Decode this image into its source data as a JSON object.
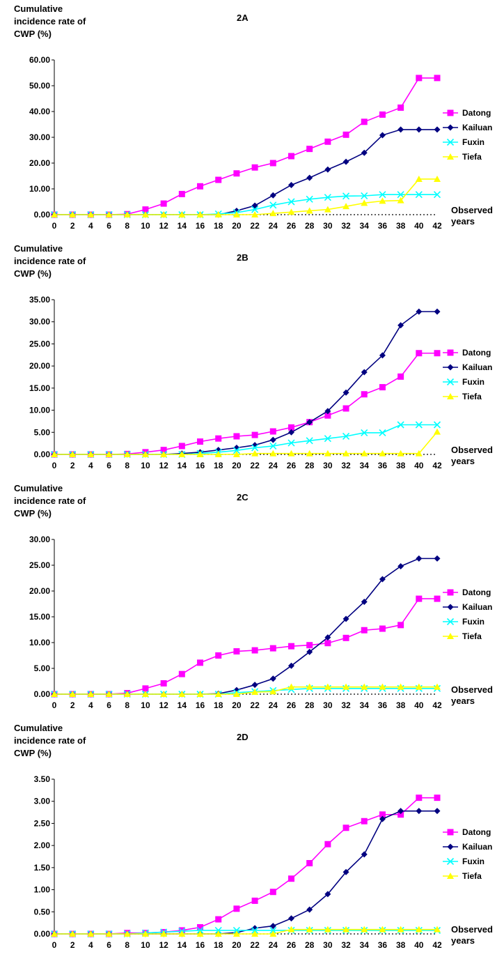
{
  "chart_data": [
    {
      "type": "line",
      "title": "2A",
      "ylabel": "Cumulative incidence rate of CWP (%)",
      "xlabel": "Observed years",
      "ylim": [
        0,
        60
      ],
      "yticks": [
        "0.00",
        "10.00",
        "20.00",
        "30.00",
        "40.00",
        "50.00",
        "60.00"
      ],
      "x": [
        0,
        2,
        4,
        6,
        8,
        10,
        12,
        14,
        16,
        18,
        20,
        22,
        24,
        26,
        28,
        30,
        32,
        34,
        36,
        38,
        40,
        42
      ],
      "legend_position": "right",
      "series": [
        {
          "name": "Datong",
          "color": "#FF00FF",
          "marker": "square",
          "values": [
            0,
            0,
            0,
            0,
            0.2,
            2,
            4.3,
            8,
            11,
            13.5,
            16,
            18.3,
            20,
            22.7,
            25.5,
            28.3,
            31,
            36,
            38.8,
            41.5,
            53,
            53
          ]
        },
        {
          "name": "Kailuan",
          "color": "#000080",
          "marker": "diamond",
          "values": [
            0,
            0,
            0,
            0,
            0,
            0,
            0,
            0,
            0,
            0,
            1.5,
            3.5,
            7.5,
            11.5,
            14.3,
            17.5,
            20.5,
            24,
            30.8,
            33,
            33,
            33
          ]
        },
        {
          "name": "Fuxin",
          "color": "#00FFFF",
          "marker": "x",
          "values": [
            0,
            0,
            0,
            0,
            0,
            0,
            0,
            0,
            0,
            0.3,
            0.8,
            2,
            3.7,
            5,
            6,
            6.7,
            7.2,
            7.3,
            7.8,
            7.8,
            7.8,
            7.8
          ]
        },
        {
          "name": "Tiefa",
          "color": "#FFFF00",
          "marker": "triangle",
          "values": [
            0,
            0,
            0,
            0,
            0,
            0,
            0,
            0,
            0,
            0,
            0,
            0,
            0.5,
            1,
            1.5,
            2,
            3.2,
            4.5,
            5.3,
            5.5,
            13.8,
            13.8
          ]
        }
      ]
    },
    {
      "type": "line",
      "title": "2B",
      "ylabel": "Cumulative incidence rate of CWP (%)",
      "xlabel": "Observed years",
      "ylim": [
        0,
        35
      ],
      "yticks": [
        "0.00",
        "5.00",
        "10.00",
        "15.00",
        "20.00",
        "25.00",
        "30.00",
        "35.00"
      ],
      "x": [
        0,
        2,
        4,
        6,
        8,
        10,
        12,
        14,
        16,
        18,
        20,
        22,
        24,
        26,
        28,
        30,
        32,
        34,
        36,
        38,
        40,
        42
      ],
      "legend_position": "right",
      "series": [
        {
          "name": "Datong",
          "color": "#FF00FF",
          "marker": "square",
          "values": [
            0,
            0,
            0,
            0,
            0.1,
            0.5,
            1,
            1.9,
            2.9,
            3.6,
            4.1,
            4.4,
            5.2,
            6.1,
            7.3,
            8.8,
            10.4,
            13.6,
            15.2,
            17.6,
            22.9,
            22.9
          ]
        },
        {
          "name": "Kailuan",
          "color": "#000080",
          "marker": "diamond",
          "values": [
            0,
            0,
            0,
            0,
            0,
            0,
            0,
            0.2,
            0.5,
            1,
            1.5,
            2.1,
            3.3,
            5,
            7.3,
            9.8,
            14,
            18.6,
            22.4,
            29.2,
            32.3,
            32.3
          ]
        },
        {
          "name": "Fuxin",
          "color": "#00FFFF",
          "marker": "x",
          "values": [
            0,
            0,
            0,
            0,
            0,
            0,
            0,
            0,
            0.2,
            0.5,
            0.9,
            1.5,
            1.9,
            2.6,
            3.1,
            3.6,
            4.1,
            4.9,
            4.9,
            6.7,
            6.7,
            6.7
          ]
        },
        {
          "name": "Tiefa",
          "color": "#FFFF00",
          "marker": "triangle",
          "values": [
            0,
            0,
            0,
            0,
            0,
            0,
            0,
            0,
            0,
            0,
            0,
            0.2,
            0.2,
            0.2,
            0.2,
            0.2,
            0.2,
            0.2,
            0.2,
            0.2,
            0.2,
            5.1
          ]
        }
      ]
    },
    {
      "type": "line",
      "title": "2C",
      "ylabel": "Cumulative incidence rate of CWP (%)",
      "xlabel": "Observed years",
      "ylim": [
        0,
        30
      ],
      "yticks": [
        "0.00",
        "5.00",
        "10.00",
        "15.00",
        "20.00",
        "25.00",
        "30.00"
      ],
      "x": [
        0,
        2,
        4,
        6,
        8,
        10,
        12,
        14,
        16,
        18,
        20,
        22,
        24,
        26,
        28,
        30,
        32,
        34,
        36,
        38,
        40,
        42
      ],
      "legend_position": "right",
      "series": [
        {
          "name": "Datong",
          "color": "#FF00FF",
          "marker": "square",
          "values": [
            0,
            0,
            0,
            0,
            0.2,
            1.1,
            2.1,
            3.9,
            6.1,
            7.5,
            8.3,
            8.5,
            8.9,
            9.3,
            9.5,
            9.9,
            10.9,
            12.4,
            12.7,
            13.4,
            18.5,
            18.5
          ]
        },
        {
          "name": "Kailuan",
          "color": "#000080",
          "marker": "diamond",
          "values": [
            0,
            0,
            0,
            0,
            0,
            0,
            0,
            0,
            0,
            0.1,
            0.8,
            1.8,
            3,
            5.5,
            8.2,
            11,
            14.6,
            17.9,
            22.3,
            24.8,
            26.3,
            26.3
          ]
        },
        {
          "name": "Fuxin",
          "color": "#00FFFF",
          "marker": "x",
          "values": [
            0,
            0,
            0,
            0,
            0,
            0,
            0,
            0,
            0,
            0,
            0.3,
            0.5,
            0.7,
            0.9,
            1.1,
            1.1,
            1.1,
            1.1,
            1.1,
            1.1,
            1.1,
            1.1
          ]
        },
        {
          "name": "Tiefa",
          "color": "#FFFF00",
          "marker": "triangle",
          "values": [
            0,
            0,
            0,
            0,
            0,
            0,
            0,
            0,
            0,
            0,
            0,
            0.4,
            0.5,
            1.4,
            1.4,
            1.4,
            1.4,
            1.4,
            1.4,
            1.4,
            1.4,
            1.4
          ]
        }
      ]
    },
    {
      "type": "line",
      "title": "2D",
      "ylabel": "Cumulative incidence rate of CWP (%)",
      "xlabel": "Observed years",
      "ylim": [
        0,
        3.5
      ],
      "yticks": [
        "0.00",
        "0.50",
        "1.00",
        "1.50",
        "2.00",
        "2.50",
        "3.00",
        "3.50"
      ],
      "x": [
        0,
        2,
        4,
        6,
        8,
        10,
        12,
        14,
        16,
        18,
        20,
        22,
        24,
        26,
        28,
        30,
        32,
        34,
        36,
        38,
        40,
        42
      ],
      "legend_position": "right",
      "series": [
        {
          "name": "Datong",
          "color": "#FF00FF",
          "marker": "square",
          "values": [
            0,
            0,
            0,
            0,
            0.02,
            0.02,
            0.04,
            0.08,
            0.15,
            0.33,
            0.57,
            0.75,
            0.95,
            1.25,
            1.6,
            2.03,
            2.4,
            2.55,
            2.7,
            2.7,
            3.08,
            3.08
          ]
        },
        {
          "name": "Kailuan",
          "color": "#000080",
          "marker": "diamond",
          "values": [
            0,
            0,
            0,
            0,
            0,
            0,
            0,
            0,
            0,
            0,
            0.03,
            0.13,
            0.18,
            0.35,
            0.55,
            0.9,
            1.4,
            1.8,
            2.6,
            2.78,
            2.78,
            2.78
          ]
        },
        {
          "name": "Fuxin",
          "color": "#00FFFF",
          "marker": "x",
          "values": [
            0,
            0,
            0,
            0,
            0,
            0.02,
            0.04,
            0.06,
            0.08,
            0.08,
            0.08,
            0.08,
            0.08,
            0.08,
            0.08,
            0.08,
            0.08,
            0.08,
            0.08,
            0.08,
            0.08,
            0.08
          ]
        },
        {
          "name": "Tiefa",
          "color": "#FFFF00",
          "marker": "triangle",
          "values": [
            0,
            0,
            0,
            0,
            0,
            0,
            0,
            0,
            0,
            0,
            0,
            0,
            0,
            0.1,
            0.1,
            0.1,
            0.1,
            0.1,
            0.1,
            0.1,
            0.1,
            0.1
          ]
        }
      ]
    }
  ]
}
